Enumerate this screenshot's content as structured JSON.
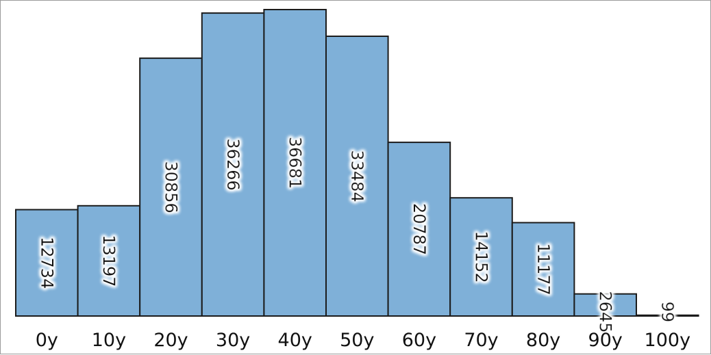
{
  "chart_data": {
    "type": "bar",
    "categories": [
      "0y",
      "10y",
      "20y",
      "30y",
      "40y",
      "50y",
      "60y",
      "70y",
      "80y",
      "90y",
      "100y"
    ],
    "values": [
      12734,
      13197,
      30856,
      36266,
      36681,
      33484,
      20787,
      14152,
      11177,
      2645,
      99
    ],
    "value_labels": [
      "12734",
      "13197",
      "30856",
      "36266",
      "36681",
      "33484",
      "20787",
      "14152",
      "11177",
      "2645",
      "99"
    ],
    "ylim": [
      0,
      36681
    ],
    "value_label_rotation": "vertical",
    "grid": false,
    "legend": "none",
    "colors": {
      "bar_fill": "#7fb0d8",
      "bar_stroke": "#1b1b1b",
      "label_glow": "#ffffff"
    }
  }
}
